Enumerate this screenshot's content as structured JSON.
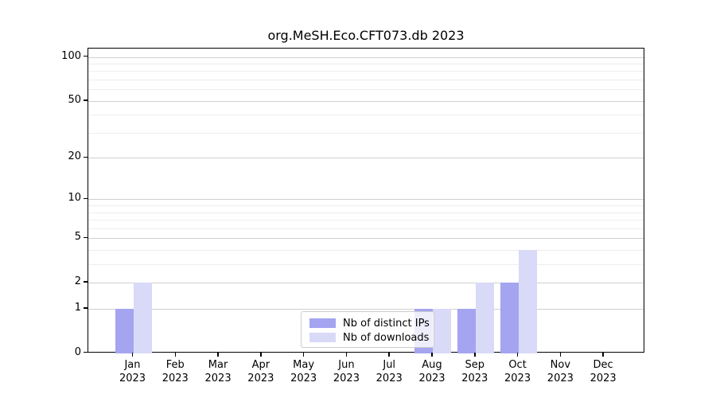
{
  "chart_data": {
    "type": "bar",
    "title": "org.MeSH.Eco.CFT073.db 2023",
    "x_year": "2023",
    "categories": [
      "Jan",
      "Feb",
      "Mar",
      "Apr",
      "May",
      "Jun",
      "Jul",
      "Aug",
      "Sep",
      "Oct",
      "Nov",
      "Dec"
    ],
    "series": [
      {
        "name": "Nb of distinct IPs",
        "color": "#a4a4f0",
        "values": [
          1,
          0,
          0,
          0,
          0,
          0,
          0,
          1,
          1,
          2,
          0,
          0
        ]
      },
      {
        "name": "Nb of downloads",
        "color": "#d9d9f8",
        "values": [
          2,
          0,
          0,
          0,
          0,
          0,
          0,
          1,
          2,
          4,
          0,
          0
        ]
      }
    ],
    "y_scale": "log1p",
    "y_major_ticks": [
      0,
      1,
      2,
      5,
      10,
      20,
      50,
      100
    ],
    "y_minor_ticks": [
      3,
      4,
      6,
      7,
      8,
      9,
      30,
      40,
      60,
      70,
      80,
      90
    ],
    "ylim": [
      0,
      115
    ],
    "grid": true,
    "legend_position": "bottom-center"
  },
  "colors": {
    "background": "#ffffff",
    "axis": "#000000",
    "grid_major": "#d0d0d0",
    "grid_minor": "#ededed",
    "legend_border": "#cccccc",
    "distinct_ips_bar": "#a4a4f0",
    "downloads_bar": "#d9d9f8"
  }
}
